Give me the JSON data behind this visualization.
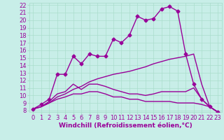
{
  "background_color": "#c8eee8",
  "grid_color": "#aaddcc",
  "line_color": "#990099",
  "marker_style": "D",
  "marker_size": 2.5,
  "line_width": 1.0,
  "xlabel": "Windchill (Refroidissement éolien,°C)",
  "xlabel_fontsize": 6.5,
  "tick_fontsize": 6.0,
  "ylim": [
    7.8,
    22.3
  ],
  "xlim": [
    -0.5,
    23.5
  ],
  "yticks": [
    8,
    9,
    10,
    11,
    12,
    13,
    14,
    15,
    16,
    17,
    18,
    19,
    20,
    21,
    22
  ],
  "xticks": [
    0,
    1,
    2,
    3,
    4,
    5,
    6,
    7,
    8,
    9,
    10,
    11,
    12,
    13,
    14,
    15,
    16,
    17,
    18,
    19,
    20,
    21,
    22,
    23
  ],
  "series": [
    {
      "x": [
        0,
        1,
        2,
        3,
        4,
        5,
        6,
        7,
        8,
        9,
        10,
        11,
        12,
        13,
        14,
        15,
        16,
        17,
        18,
        19,
        20,
        21,
        22,
        23
      ],
      "y": [
        8.2,
        8.8,
        9.5,
        12.8,
        12.8,
        15.2,
        14.2,
        15.5,
        15.2,
        15.2,
        17.5,
        17.0,
        18.0,
        20.5,
        20.0,
        20.2,
        21.5,
        21.8,
        21.2,
        15.5,
        11.5,
        9.5,
        8.5,
        7.8
      ],
      "has_markers": true
    },
    {
      "x": [
        0,
        1,
        2,
        3,
        4,
        5,
        6,
        7,
        8,
        9,
        10,
        11,
        12,
        13,
        14,
        15,
        16,
        17,
        18,
        19,
        20,
        21,
        22,
        23
      ],
      "y": [
        8.2,
        8.5,
        9.0,
        9.8,
        10.2,
        10.8,
        11.2,
        11.8,
        12.2,
        12.5,
        12.8,
        13.0,
        13.2,
        13.5,
        13.8,
        14.2,
        14.5,
        14.8,
        15.0,
        15.2,
        15.5,
        11.5,
        8.5,
        7.8
      ],
      "has_markers": false
    },
    {
      "x": [
        0,
        1,
        2,
        3,
        4,
        5,
        6,
        7,
        8,
        9,
        10,
        11,
        12,
        13,
        14,
        15,
        16,
        17,
        18,
        19,
        20,
        21,
        22,
        23
      ],
      "y": [
        8.2,
        8.5,
        9.2,
        10.2,
        10.5,
        11.5,
        10.8,
        11.5,
        11.5,
        11.2,
        10.8,
        10.5,
        10.2,
        10.2,
        10.0,
        10.2,
        10.5,
        10.5,
        10.5,
        10.5,
        11.0,
        9.5,
        8.5,
        7.8
      ],
      "has_markers": false
    },
    {
      "x": [
        0,
        1,
        2,
        3,
        4,
        5,
        6,
        7,
        8,
        9,
        10,
        11,
        12,
        13,
        14,
        15,
        16,
        17,
        18,
        19,
        20,
        21,
        22,
        23
      ],
      "y": [
        8.2,
        8.5,
        9.0,
        9.5,
        9.8,
        10.2,
        10.2,
        10.5,
        10.5,
        10.2,
        9.8,
        9.8,
        9.5,
        9.5,
        9.2,
        9.2,
        9.2,
        9.2,
        9.0,
        9.0,
        9.0,
        8.8,
        8.5,
        7.8
      ],
      "has_markers": false
    }
  ]
}
